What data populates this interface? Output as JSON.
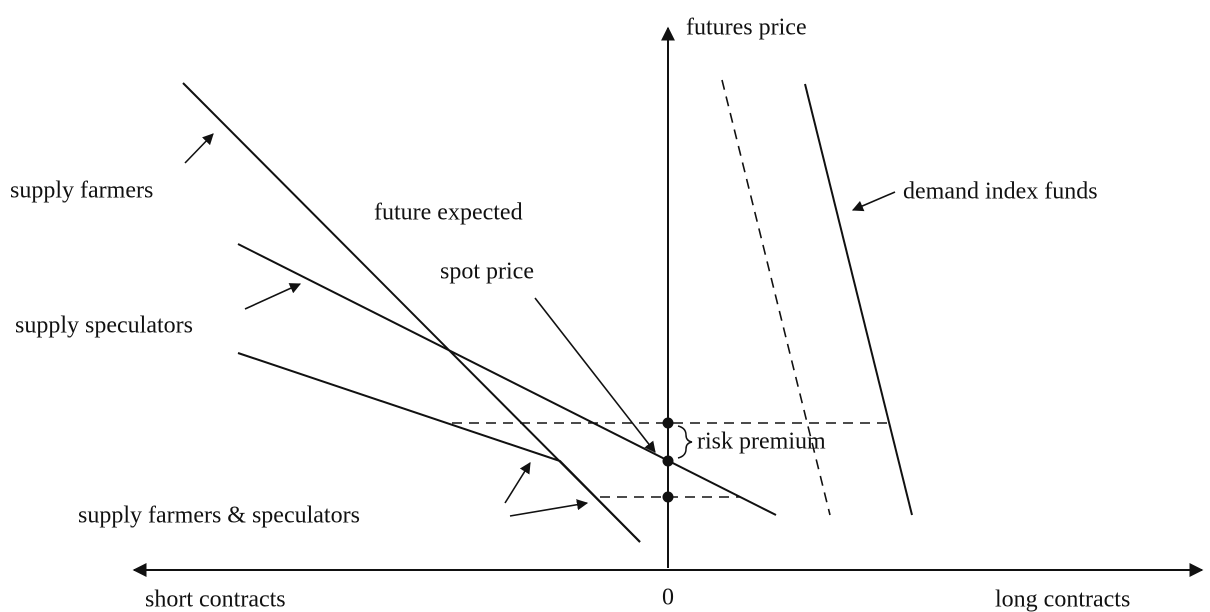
{
  "axes": {
    "y_label": "futures price",
    "x_left_label": "short contracts",
    "origin_label": "0",
    "x_right_label": "long contracts"
  },
  "labels": {
    "supply_farmers": "supply farmers",
    "supply_speculators": "supply speculators",
    "future_expected": "future expected",
    "spot_price": "spot price",
    "demand_index_funds": "demand index funds",
    "risk_premium": "risk premium",
    "supply_combined": "supply farmers & speculators"
  }
}
